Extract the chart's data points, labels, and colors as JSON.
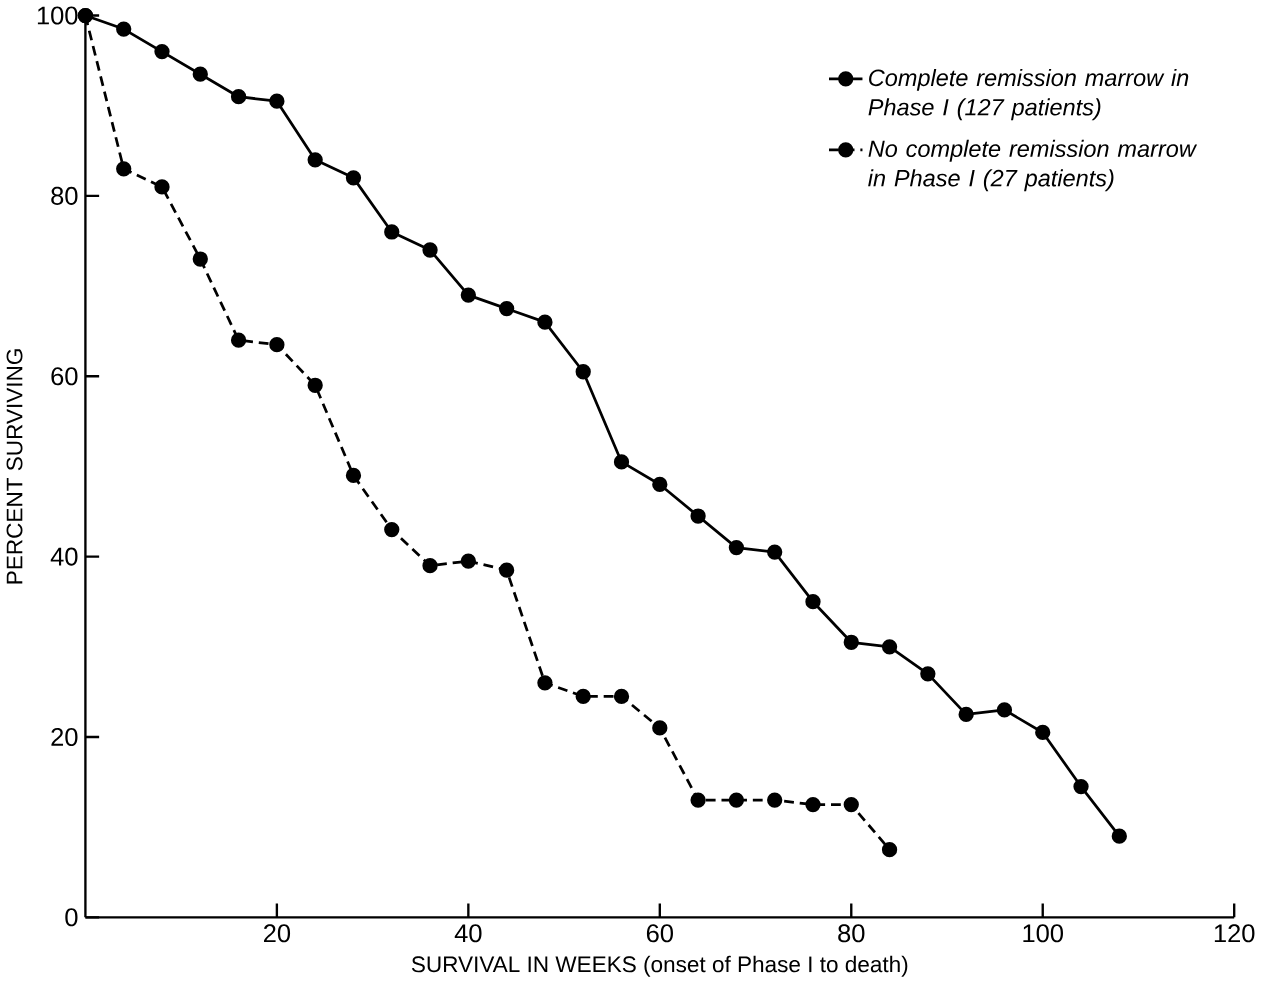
{
  "chart_data": {
    "type": "line",
    "xlabel": "SURVIVAL IN WEEKS (onset of Phase I to death)",
    "ylabel": "PERCENT SURVIVING",
    "xlim": [
      0,
      120
    ],
    "ylim": [
      0,
      100
    ],
    "xticks": [
      20,
      40,
      60,
      80,
      100,
      120
    ],
    "yticks": [
      0,
      20,
      40,
      60,
      80,
      100
    ],
    "marker": "circle",
    "legend": "top right",
    "grid": false,
    "series": [
      {
        "name": "Complete remission marrow in Phase I (127 patients)",
        "color": "#000000",
        "line_style": "solid",
        "x": [
          0,
          4,
          8,
          12,
          16,
          20,
          24,
          28,
          32,
          36,
          40,
          44,
          48,
          52,
          56,
          60,
          64,
          68,
          72,
          76,
          80,
          84,
          88,
          92,
          96,
          100,
          104,
          108
        ],
        "values": [
          100,
          98.5,
          96,
          93.5,
          91,
          90.5,
          84,
          82,
          76,
          74,
          69,
          67.5,
          66,
          60.5,
          50.5,
          48,
          44.5,
          41,
          40.5,
          35,
          30.5,
          30,
          27,
          22.5,
          23,
          20.5,
          14.5,
          9
        ]
      },
      {
        "name": "No complete remission marrow in Phase I (27 patients)",
        "color": "#000000",
        "line_style": "dashed",
        "x": [
          0,
          4,
          8,
          12,
          16,
          20,
          24,
          28,
          32,
          36,
          40,
          44,
          48,
          52,
          56,
          60,
          64,
          68,
          72,
          76,
          80,
          84
        ],
        "values": [
          100,
          83,
          81,
          73,
          64,
          63.5,
          59,
          49,
          43,
          39,
          39.5,
          38.5,
          26,
          24.5,
          24.5,
          21,
          13,
          13,
          13,
          12.5,
          12.5,
          7.5
        ]
      }
    ]
  }
}
